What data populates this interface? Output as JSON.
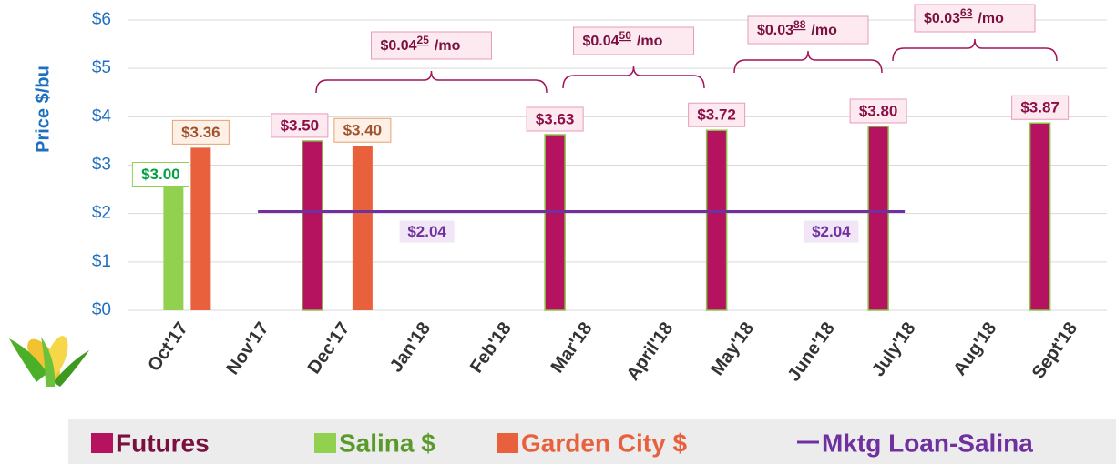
{
  "chart_data": {
    "type": "bar",
    "y_label": "Price $/bu",
    "categories": [
      "Oct'17",
      "Nov'17",
      "Dec'17",
      "Jan'18",
      "Feb'18",
      "Mar'18",
      "April'18",
      "May'18",
      "June'18",
      "July'18",
      "Aug'18",
      "Sept'18"
    ],
    "series": [
      {
        "name": "Futures",
        "type": "bar",
        "color": "#b5135f",
        "values": [
          null,
          null,
          3.5,
          null,
          null,
          3.63,
          null,
          3.72,
          null,
          3.8,
          null,
          3.87
        ],
        "value_labels": [
          null,
          null,
          "$3.50",
          null,
          null,
          "$3.63",
          null,
          "$3.72",
          null,
          "$3.80",
          null,
          "$3.87"
        ]
      },
      {
        "name": "Salina $",
        "type": "bar",
        "color": "#92d050",
        "values": [
          3.0,
          null,
          null,
          null,
          null,
          null,
          null,
          null,
          null,
          null,
          null,
          null
        ],
        "value_labels": [
          "$3.00",
          null,
          null,
          null,
          null,
          null,
          null,
          null,
          null,
          null,
          null,
          null
        ]
      },
      {
        "name": "Garden City $",
        "type": "bar",
        "color": "#e8603c",
        "values": [
          3.36,
          null,
          3.4,
          null,
          null,
          null,
          null,
          null,
          null,
          null,
          null,
          null
        ],
        "value_labels": [
          "$3.36",
          null,
          "$3.40",
          null,
          null,
          null,
          null,
          null,
          null,
          null,
          null,
          null
        ]
      },
      {
        "name": "Mktg Loan-Salina",
        "type": "line",
        "color": "#7030a0",
        "values": [
          null,
          2.04,
          2.04,
          2.04,
          2.04,
          2.04,
          2.04,
          2.04,
          2.04,
          2.04,
          null,
          null
        ],
        "value_labels": [
          null,
          null,
          null,
          "$2.04",
          null,
          null,
          null,
          null,
          "$2.04",
          null,
          null,
          null
        ]
      }
    ],
    "ylim": [
      0,
      6
    ],
    "yticks": [
      {
        "value": 0,
        "label": "$0"
      },
      {
        "value": 1,
        "label": "$1"
      },
      {
        "value": 2,
        "label": "$2"
      },
      {
        "value": 3,
        "label": "$3"
      },
      {
        "value": 4,
        "label": "$4"
      },
      {
        "value": 5,
        "label": "$5"
      },
      {
        "value": 6,
        "label": "$6"
      }
    ],
    "grid": true,
    "annotations": [
      {
        "main": "$0.04",
        "sup": "25",
        "unit": "/mo"
      },
      {
        "main": "$0.04",
        "sup": "50",
        "unit": "/mo"
      },
      {
        "main": "$0.03",
        "sup": "88",
        "unit": "/mo"
      },
      {
        "main": "$0.03",
        "sup": "63",
        "unit": "/mo"
      }
    ]
  }
}
